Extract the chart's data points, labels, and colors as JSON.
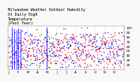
{
  "title": "Milwaukee Weather Outdoor Humidity\nAt Daily High\nTemperature\n(Past Year)",
  "ylim": [
    10,
    105
  ],
  "yticks": [
    20,
    30,
    40,
    50,
    60,
    70,
    80,
    90,
    100
  ],
  "background_color": "#f8f8f8",
  "plot_bg": "#ffffff",
  "grid_color": "#aaaaaa",
  "dot_size_blue": 1.2,
  "dot_size_red": 1.2,
  "spike_color": "#0000ff",
  "n_days": 365,
  "n_grid_lines": 12,
  "title_fontsize": 3.5,
  "tick_fontsize": 3.0,
  "spike_positions": [
    10,
    18,
    25,
    30,
    38,
    120
  ],
  "spike_heights": [
    100,
    98,
    96,
    99,
    97,
    100
  ],
  "month_labels": [
    "J",
    "F",
    "M",
    "A",
    "M",
    "J",
    "J",
    "A",
    "S",
    "O",
    "N",
    "D",
    ""
  ]
}
